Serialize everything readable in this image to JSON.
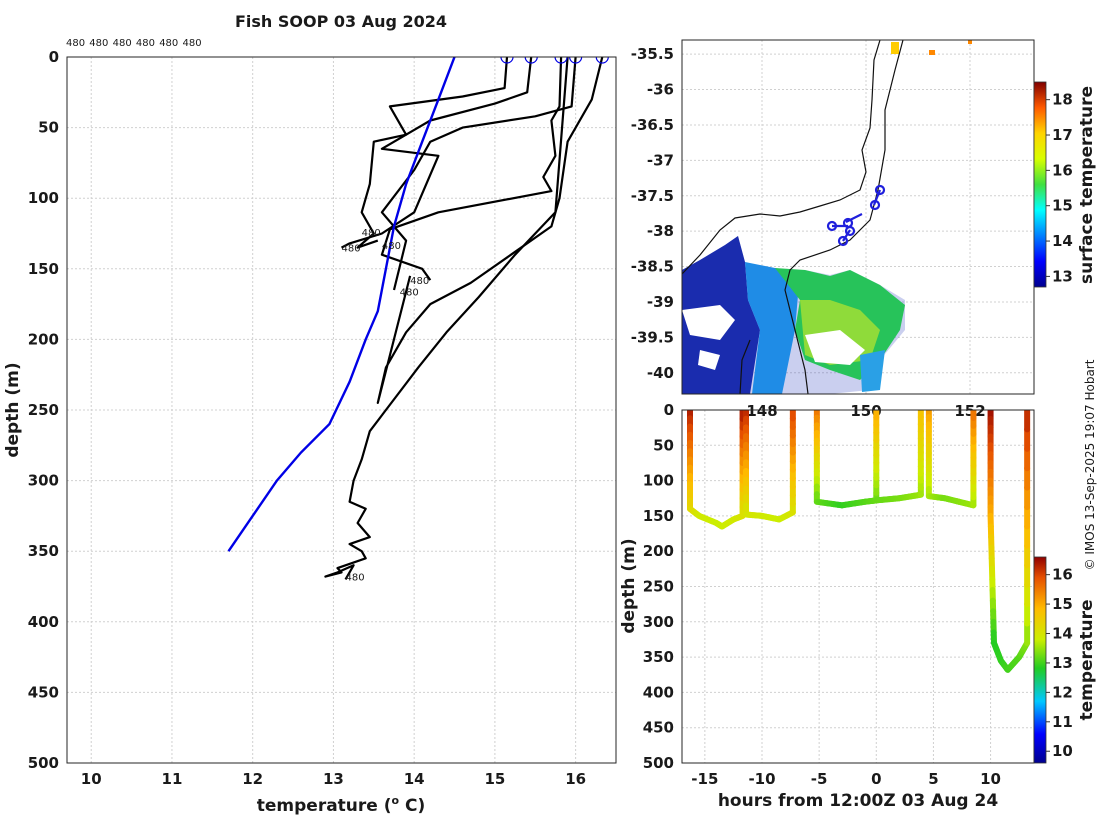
{
  "chart_data": [
    {
      "type": "line",
      "title": "Fish SOOP 03 Aug 2024",
      "xlabel": "temperature (",
      "xlabel_sup": "o",
      "xlabel_tail": " C)",
      "ylabel": "depth (m)",
      "xlim": [
        9.7,
        16.5
      ],
      "ylim": [
        500,
        0
      ],
      "xticks": [
        10,
        11,
        12,
        13,
        14,
        15,
        16
      ],
      "yticks": [
        0,
        50,
        100,
        150,
        200,
        250,
        300,
        350,
        400,
        450,
        500
      ],
      "top_labels": [
        "480",
        "480",
        "480",
        "480",
        "480",
        "480"
      ],
      "profile_labels": [
        {
          "text": "480",
          "t": 13.1,
          "d": 135
        },
        {
          "text": "480",
          "t": 13.35,
          "d": 124
        },
        {
          "text": "480",
          "t": 13.6,
          "d": 133
        },
        {
          "text": "480",
          "t": 13.95,
          "d": 158
        },
        {
          "text": "480",
          "t": 13.82,
          "d": 166
        },
        {
          "text": "480",
          "t": 13.15,
          "d": 368
        }
      ],
      "surface_markers": [
        15.15,
        15.45,
        15.82,
        16.0,
        16.33
      ],
      "climatology_color": "#0000e6",
      "climatology": {
        "t": [
          14.5,
          14.3,
          14.1,
          13.9,
          13.75,
          13.65,
          13.55,
          13.4,
          13.2,
          12.95,
          12.6,
          12.3,
          11.7
        ],
        "d": [
          0,
          30,
          60,
          90,
          120,
          150,
          180,
          200,
          230,
          260,
          280,
          300,
          350
        ]
      },
      "series": [
        {
          "name": "p1",
          "t": [
            15.15,
            15.12,
            14.6,
            13.7,
            13.9,
            13.5,
            13.45,
            13.35,
            13.5,
            13.3,
            13.55
          ],
          "d": [
            0,
            22,
            28,
            35,
            55,
            60,
            90,
            110,
            125,
            135,
            130
          ]
        },
        {
          "name": "p2",
          "t": [
            15.45,
            15.4,
            15.0,
            14.2,
            13.6,
            14.3,
            14.0,
            13.6,
            13.2,
            13.1
          ],
          "d": [
            0,
            25,
            33,
            45,
            65,
            70,
            110,
            125,
            132,
            135
          ]
        },
        {
          "name": "p3",
          "t": [
            15.82,
            15.8,
            15.7,
            15.75,
            15.6,
            15.7,
            14.3,
            13.7,
            13.6,
            14.1,
            14.2
          ],
          "d": [
            0,
            35,
            45,
            70,
            85,
            95,
            110,
            122,
            140,
            150,
            158
          ]
        },
        {
          "name": "p4",
          "t": [
            16.0,
            15.95,
            15.5,
            14.6,
            14.2,
            14.0,
            13.6,
            13.9,
            13.75
          ],
          "d": [
            0,
            35,
            42,
            50,
            60,
            80,
            110,
            130,
            165
          ]
        },
        {
          "name": "p5",
          "t": [
            16.33,
            16.2,
            15.9,
            15.8,
            15.7,
            15.2,
            14.7,
            14.2,
            13.9,
            13.65,
            13.55,
            13.95
          ],
          "d": [
            0,
            30,
            60,
            100,
            120,
            140,
            160,
            175,
            195,
            220,
            245,
            155
          ]
        },
        {
          "name": "deep",
          "t": [
            15.9,
            15.75,
            15.25,
            14.8,
            14.4,
            14.05,
            13.65,
            13.45,
            13.35,
            13.25,
            13.2,
            13.4,
            13.3,
            13.45,
            13.2,
            13.35,
            13.4,
            13.15,
            13.05,
            13.1,
            12.9,
            13.05,
            13.25,
            13.15
          ],
          "d": [
            0,
            110,
            140,
            170,
            195,
            220,
            250,
            265,
            285,
            300,
            315,
            320,
            330,
            340,
            345,
            350,
            355,
            360,
            362,
            365,
            368,
            365,
            360,
            370
          ]
        }
      ]
    },
    {
      "type": "heatmap",
      "title": "",
      "ylim": [
        -40.3,
        -35.3
      ],
      "yticks": [
        -35.5,
        -36,
        -36.5,
        -37,
        -37.5,
        -38,
        -38.5,
        -39,
        -39.5,
        -40
      ],
      "xticks": [
        "148",
        "150",
        "152"
      ],
      "colorbar_label": "surface temperature",
      "colorbar_ticks": [
        13,
        14,
        15,
        16,
        17,
        18
      ],
      "colorbar_range": [
        12.7,
        18.5
      ],
      "track_color": "#1f1fdc"
    },
    {
      "type": "scatter",
      "xlabel": "hours from 12:00Z 03 Aug 24",
      "ylabel": "depth (m)",
      "xlim": [
        -17,
        13.8
      ],
      "ylim": [
        500,
        0
      ],
      "xticks": [
        -15,
        -10,
        -5,
        0,
        5,
        10
      ],
      "yticks": [
        0,
        50,
        100,
        150,
        200,
        250,
        300,
        350,
        400,
        450,
        500
      ],
      "colorbar_label": "temperature",
      "colorbar_ticks": [
        10,
        11,
        12,
        13,
        14,
        15,
        16
      ],
      "colorbar_range": [
        9.6,
        16.6
      ],
      "casts": [
        {
          "h": [
            -16.3,
            -16.3,
            -15.5,
            -14,
            -13.5,
            -12.5,
            -11.7,
            -11.7
          ],
          "d": [
            0,
            140,
            150,
            160,
            165,
            155,
            150,
            0
          ],
          "temp_profile": [
            16.4,
            14.3,
            13.9,
            13.8,
            13.8,
            13.9,
            14.0,
            16.4
          ]
        },
        {
          "h": [
            -11.4,
            -11.4,
            -10,
            -8.5,
            -7.3,
            -7.3
          ],
          "d": [
            0,
            148,
            150,
            155,
            145,
            0
          ],
          "temp_profile": [
            16.3,
            14.0,
            13.9,
            13.8,
            14.0,
            16.0
          ]
        },
        {
          "h": [
            -5.2,
            -5.2,
            -3,
            -1,
            0,
            0
          ],
          "d": [
            0,
            130,
            135,
            130,
            128,
            0
          ],
          "temp_profile": [
            15.6,
            13.2,
            12.9,
            13.1,
            13.2,
            15.0
          ]
        },
        {
          "h": [
            0,
            2,
            3.9,
            3.9
          ],
          "d": [
            128,
            125,
            120,
            0
          ],
          "temp_profile": [
            13.2,
            13.3,
            13.5,
            14.7
          ]
        },
        {
          "h": [
            4.6,
            4.6,
            6,
            8.5,
            8.5
          ],
          "d": [
            0,
            122,
            125,
            135,
            0
          ],
          "temp_profile": [
            15.2,
            13.6,
            13.3,
            13.5,
            15.6
          ]
        },
        {
          "h": [
            10,
            10,
            10.3,
            10.9,
            11.5,
            12.5,
            13.2,
            13.2
          ],
          "d": [
            0,
            150,
            330,
            355,
            368,
            350,
            330,
            0
          ],
          "temp_profile": [
            16.5,
            15.0,
            12.8,
            12.9,
            13.0,
            13.1,
            13.4,
            16.3
          ]
        }
      ]
    }
  ],
  "copyright": "© IMOS 13-Sep-2025 19:07 Hobart"
}
